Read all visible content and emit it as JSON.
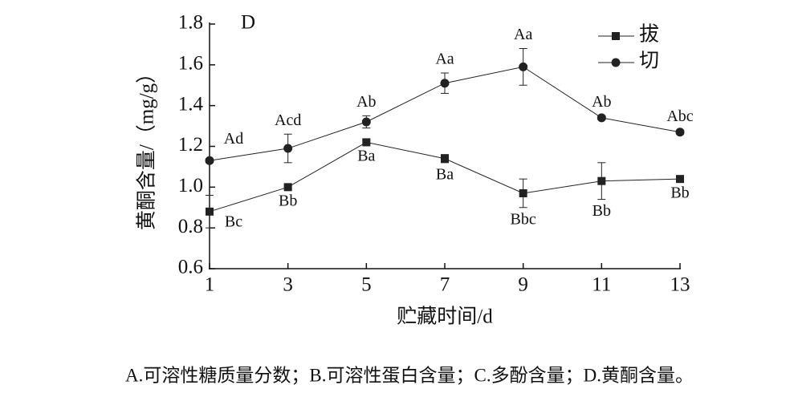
{
  "chart_data": {
    "type": "line",
    "panel": "D",
    "y_label": "黄酮含量/（mg/g）",
    "x_label": "贮藏时间/d",
    "x": [
      1,
      3,
      5,
      7,
      9,
      11,
      13
    ],
    "xlim": [
      1,
      13
    ],
    "xticks": [
      1,
      3,
      5,
      7,
      9,
      11,
      13
    ],
    "ylim": [
      0.6,
      1.8
    ],
    "yticks": [
      0.6,
      0.8,
      {
        "value": 1,
        "label": "1.0"
      },
      1.2,
      1.4,
      1.6,
      1.8
    ],
    "legend": "top-right",
    "series": [
      {
        "name": "拔",
        "color": "#222222",
        "marker": "square",
        "values": [
          0.88,
          1.0,
          1.22,
          1.14,
          0.97,
          1.03,
          1.04
        ],
        "errors": [
          0.08,
          0.01,
          0.01,
          0.02,
          0.07,
          0.09,
          0.01
        ],
        "labels": [
          "Bc",
          "Bb",
          "Ba",
          "Ba",
          "Bbc",
          "Bb",
          "Bb"
        ]
      },
      {
        "name": "切",
        "color": "#222222",
        "marker": "circle",
        "values": [
          1.13,
          1.19,
          1.32,
          1.51,
          1.59,
          1.34,
          1.27
        ],
        "errors": [
          0.01,
          0.07,
          0.03,
          0.05,
          0.09,
          0.01,
          0.01
        ],
        "labels": [
          "Ad",
          "Acd",
          "Ab",
          "Aa",
          "Aa",
          "Ab",
          "Abc"
        ]
      }
    ],
    "caption": "A.可溶性糖质量分数；B.可溶性蛋白含量；C.多酚含量；D.黄酮含量。"
  }
}
